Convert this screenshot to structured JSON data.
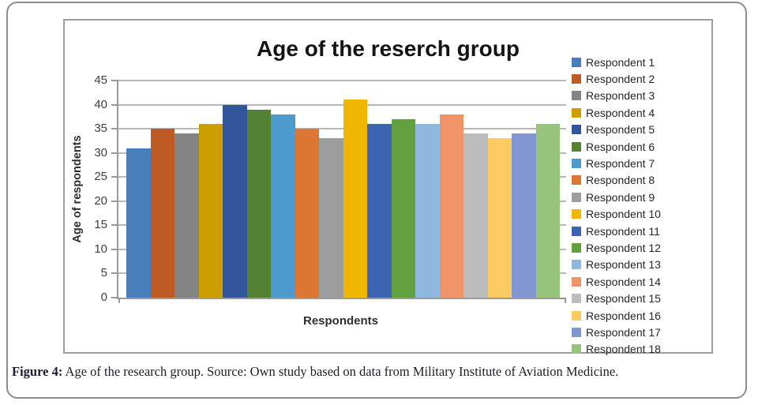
{
  "figure": {
    "caption_label": "Figure 4:",
    "caption_text": "Age of the research group. Source: Own study based on data from Military Institute of Aviation Medicine."
  },
  "chart_data": {
    "type": "bar",
    "title": "Age of the reserch group",
    "xlabel": "Respondents",
    "ylabel": "Age of respondents",
    "ylim": [
      0,
      45
    ],
    "yticks": [
      0,
      5,
      10,
      15,
      20,
      25,
      30,
      35,
      40,
      45
    ],
    "grid": true,
    "legend_position": "right",
    "categories": [
      "Respondents"
    ],
    "series": [
      {
        "name": "Respondent 1",
        "value": 31,
        "color": "#4A7EBB"
      },
      {
        "name": "Respondent 2",
        "value": 35,
        "color": "#BE5A24"
      },
      {
        "name": "Respondent 3",
        "value": 34,
        "color": "#848484"
      },
      {
        "name": "Respondent 4",
        "value": 36,
        "color": "#CC9E00"
      },
      {
        "name": "Respondent 5",
        "value": 40,
        "color": "#33559B"
      },
      {
        "name": "Respondent 6",
        "value": 39,
        "color": "#548235"
      },
      {
        "name": "Respondent 7",
        "value": 38,
        "color": "#4E9ACD"
      },
      {
        "name": "Respondent 8",
        "value": 35,
        "color": "#DE7633"
      },
      {
        "name": "Respondent 9",
        "value": 33,
        "color": "#9D9D9D"
      },
      {
        "name": "Respondent 10",
        "value": 41,
        "color": "#EFB700"
      },
      {
        "name": "Respondent 11",
        "value": 36,
        "color": "#3C64B0"
      },
      {
        "name": "Respondent 12",
        "value": 37,
        "color": "#61A03F"
      },
      {
        "name": "Respondent 13",
        "value": 36,
        "color": "#8FB8DE"
      },
      {
        "name": "Respondent 14",
        "value": 38,
        "color": "#EE9468"
      },
      {
        "name": "Respondent 15",
        "value": 34,
        "color": "#BCBCBC"
      },
      {
        "name": "Respondent 16",
        "value": 33,
        "color": "#FBCA60"
      },
      {
        "name": "Respondent 17",
        "value": 34,
        "color": "#8297D2"
      },
      {
        "name": "Respondent 18",
        "value": 36,
        "color": "#97C37B"
      }
    ]
  }
}
